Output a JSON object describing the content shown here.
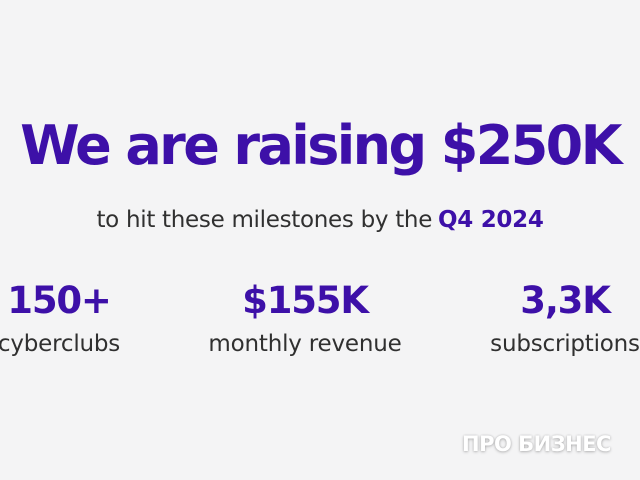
{
  "headline": "We are raising $250K",
  "subline": {
    "text": "to hit these milestones by the",
    "highlight": "Q4 2024"
  },
  "stats": [
    {
      "value": "150+",
      "label": "cyberclubs"
    },
    {
      "value": "$155K",
      "label": "monthly revenue"
    },
    {
      "value": "3,3K",
      "label": "subscriptions"
    }
  ],
  "watermark": "ПРО БИЗНЕС",
  "colors": {
    "accent": "#3d10a8",
    "body_text": "#303030",
    "background": "#f4f4f5"
  }
}
